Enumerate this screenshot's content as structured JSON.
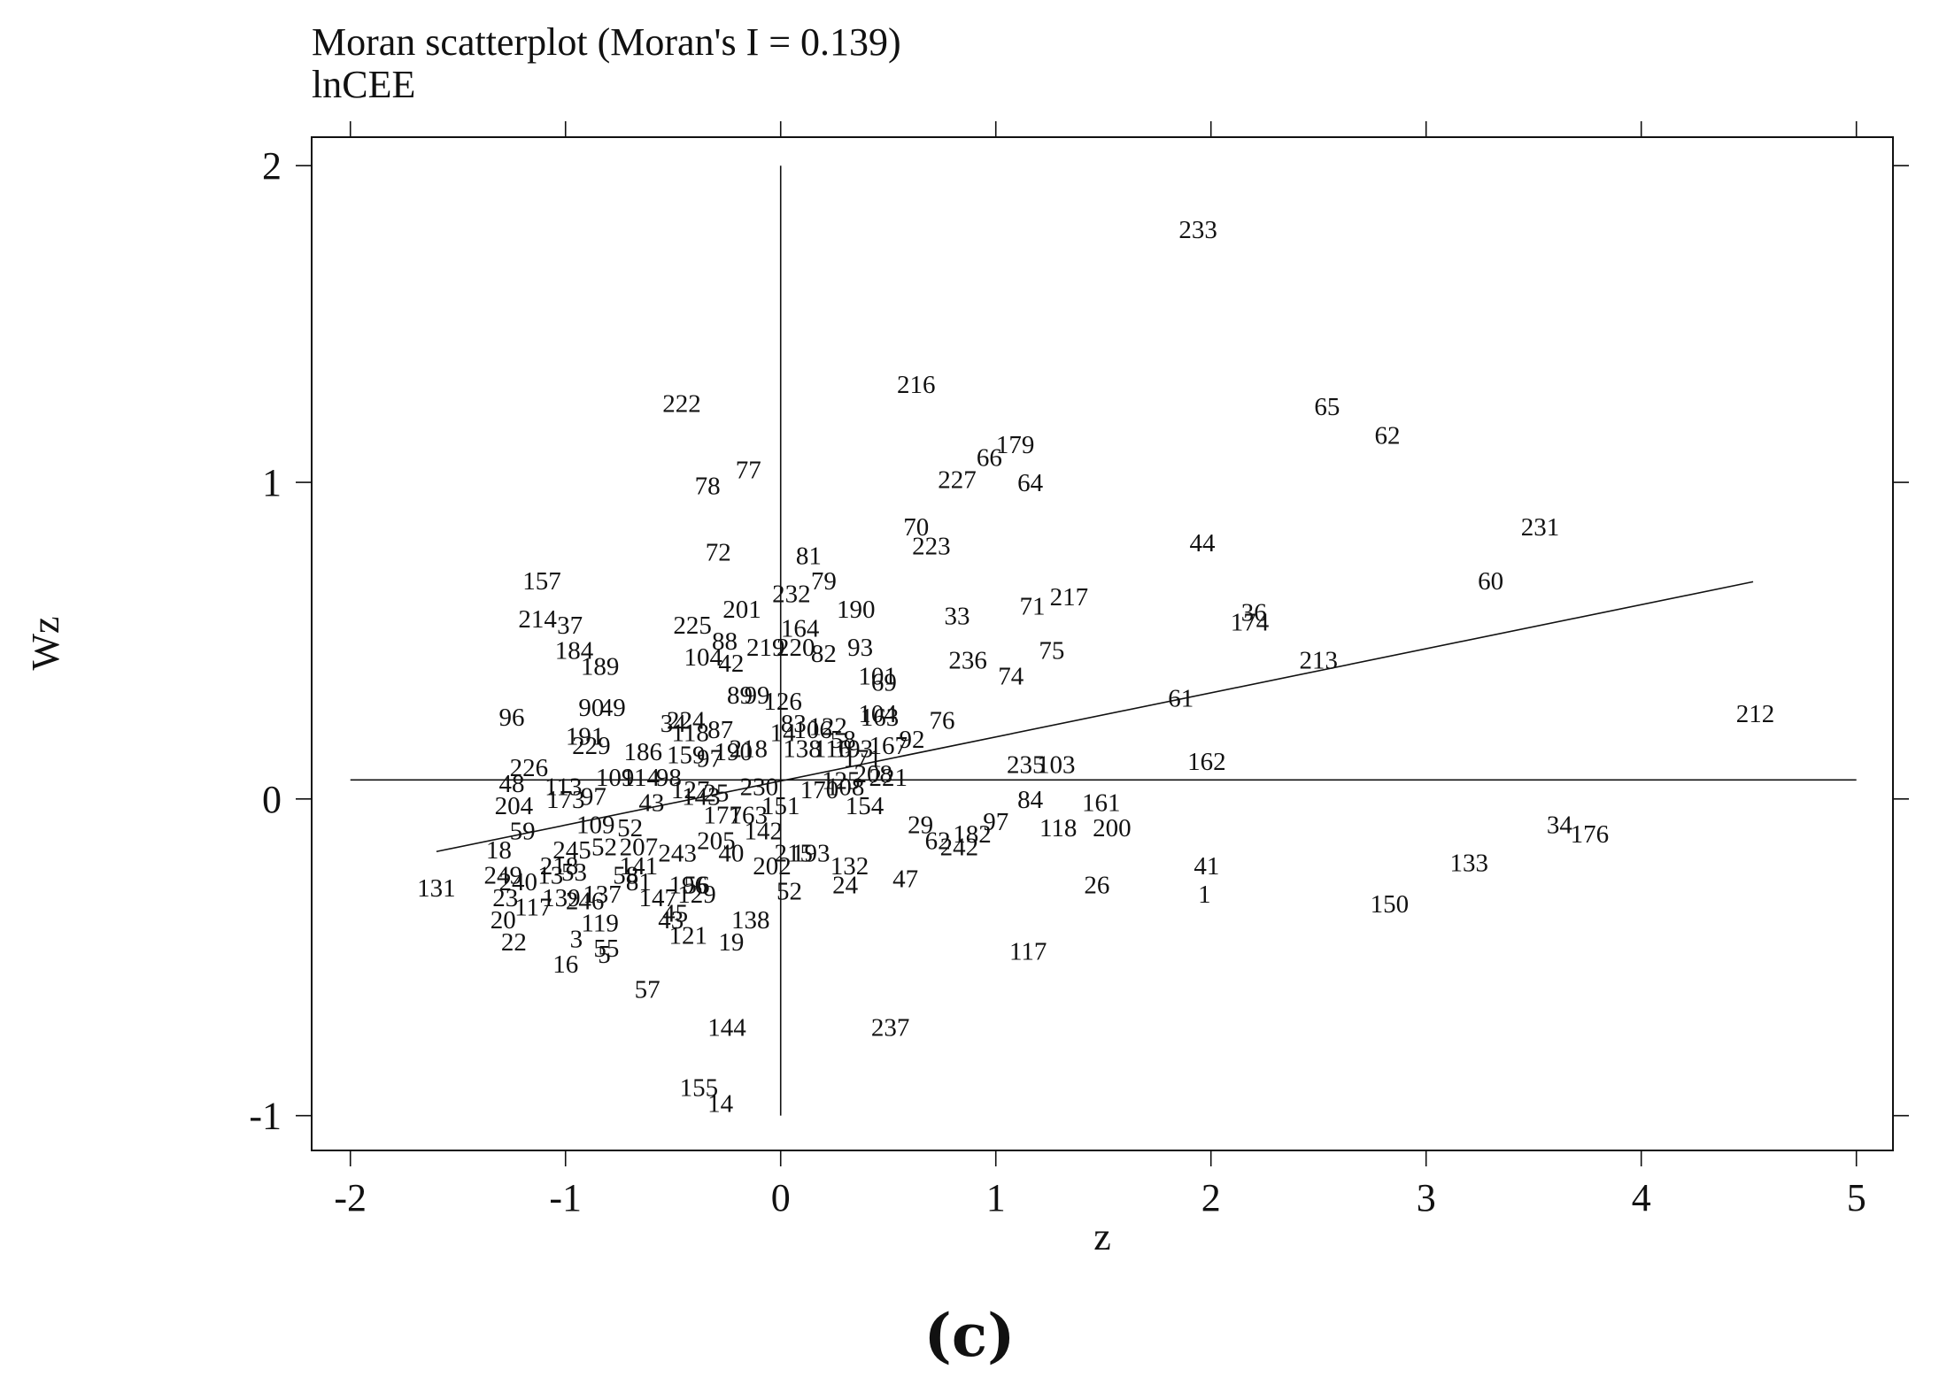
{
  "chart_data": {
    "type": "scatter",
    "title": "Moran scatterplot (Moran's I = 0.139)",
    "subtitle": "lnCEE",
    "xlabel": "z",
    "ylabel": "Wz",
    "panel_label": "(c)",
    "xlim": [
      -2.18,
      5.17
    ],
    "ylim": [
      -1.11,
      2.09
    ],
    "x_ticks": [
      -2,
      -1,
      0,
      1,
      2,
      3,
      4,
      5
    ],
    "x_tick_labels": [
      "-2",
      "-1",
      "0",
      "1",
      "2",
      "3",
      "4",
      "5"
    ],
    "y_ticks": [
      -1,
      0,
      1,
      2
    ],
    "y_tick_labels": [
      "-1",
      "0",
      "1",
      "2"
    ],
    "grid": false,
    "reference_lines": {
      "x": 0,
      "y": 0.06
    },
    "regression_line": {
      "x": [
        -1.6,
        4.52
      ],
      "y": [
        -0.166,
        0.686
      ]
    },
    "points": [
      {
        "label": "233",
        "x": 1.94,
        "y": 1.8
      },
      {
        "label": "216",
        "x": 0.63,
        "y": 1.31
      },
      {
        "label": "222",
        "x": -0.46,
        "y": 1.25
      },
      {
        "label": "65",
        "x": 2.54,
        "y": 1.24
      },
      {
        "label": "62",
        "x": 2.82,
        "y": 1.15
      },
      {
        "label": "179",
        "x": 1.09,
        "y": 1.12
      },
      {
        "label": "66",
        "x": 0.97,
        "y": 1.08
      },
      {
        "label": "227",
        "x": 0.82,
        "y": 1.01
      },
      {
        "label": "64",
        "x": 1.16,
        "y": 1.0
      },
      {
        "label": "77",
        "x": -0.15,
        "y": 1.04
      },
      {
        "label": "78",
        "x": -0.34,
        "y": 0.99
      },
      {
        "label": "231",
        "x": 3.53,
        "y": 0.86
      },
      {
        "label": "70",
        "x": 0.63,
        "y": 0.86
      },
      {
        "label": "223",
        "x": 0.7,
        "y": 0.8
      },
      {
        "label": "44",
        "x": 1.96,
        "y": 0.81
      },
      {
        "label": "72",
        "x": -0.29,
        "y": 0.78
      },
      {
        "label": "81",
        "x": 0.13,
        "y": 0.77
      },
      {
        "label": "157",
        "x": -1.11,
        "y": 0.69
      },
      {
        "label": "79",
        "x": 0.2,
        "y": 0.69
      },
      {
        "label": "60",
        "x": 3.3,
        "y": 0.69
      },
      {
        "label": "232",
        "x": 0.05,
        "y": 0.65
      },
      {
        "label": "217",
        "x": 1.34,
        "y": 0.64
      },
      {
        "label": "71",
        "x": 1.17,
        "y": 0.61
      },
      {
        "label": "201",
        "x": -0.18,
        "y": 0.6
      },
      {
        "label": "190",
        "x": 0.35,
        "y": 0.6
      },
      {
        "label": "33",
        "x": 0.82,
        "y": 0.58
      },
      {
        "label": "36",
        "x": 2.2,
        "y": 0.59
      },
      {
        "label": "174",
        "x": 2.18,
        "y": 0.56
      },
      {
        "label": "214",
        "x": -1.13,
        "y": 0.57
      },
      {
        "label": "37",
        "x": -0.98,
        "y": 0.55
      },
      {
        "label": "225",
        "x": -0.41,
        "y": 0.55
      },
      {
        "label": "164",
        "x": 0.09,
        "y": 0.54
      },
      {
        "label": "88",
        "x": -0.26,
        "y": 0.5
      },
      {
        "label": "219",
        "x": -0.07,
        "y": 0.48
      },
      {
        "label": "220",
        "x": 0.07,
        "y": 0.48
      },
      {
        "label": "93",
        "x": 0.37,
        "y": 0.48
      },
      {
        "label": "75",
        "x": 1.26,
        "y": 0.47
      },
      {
        "label": "184",
        "x": -0.96,
        "y": 0.47
      },
      {
        "label": "82",
        "x": 0.2,
        "y": 0.46
      },
      {
        "label": "213",
        "x": 2.5,
        "y": 0.44
      },
      {
        "label": "104",
        "x": -0.36,
        "y": 0.45
      },
      {
        "label": "42",
        "x": -0.23,
        "y": 0.43
      },
      {
        "label": "236",
        "x": 0.87,
        "y": 0.44
      },
      {
        "label": "189",
        "x": -0.84,
        "y": 0.42
      },
      {
        "label": "74",
        "x": 1.07,
        "y": 0.39
      },
      {
        "label": "101",
        "x": 0.45,
        "y": 0.39
      },
      {
        "label": "69",
        "x": 0.48,
        "y": 0.37
      },
      {
        "label": "89",
        "x": -0.19,
        "y": 0.33
      },
      {
        "label": "99",
        "x": -0.11,
        "y": 0.33
      },
      {
        "label": "61",
        "x": 1.86,
        "y": 0.32
      },
      {
        "label": "126",
        "x": 0.01,
        "y": 0.31
      },
      {
        "label": "90",
        "x": -0.88,
        "y": 0.29
      },
      {
        "label": "49",
        "x": -0.78,
        "y": 0.29
      },
      {
        "label": "96",
        "x": -1.25,
        "y": 0.26
      },
      {
        "label": "104b",
        "x": 0.45,
        "y": 0.27
      },
      {
        "label": "163",
        "x": 0.46,
        "y": 0.26
      },
      {
        "label": "76",
        "x": 0.75,
        "y": 0.25
      },
      {
        "label": "212",
        "x": 4.53,
        "y": 0.27
      },
      {
        "label": "224",
        "x": -0.44,
        "y": 0.25
      },
      {
        "label": "34b",
        "x": -0.5,
        "y": 0.24
      },
      {
        "label": "118b",
        "x": -0.42,
        "y": 0.21
      },
      {
        "label": "87",
        "x": -0.28,
        "y": 0.22
      },
      {
        "label": "83",
        "x": 0.06,
        "y": 0.24
      },
      {
        "label": "106",
        "x": 0.15,
        "y": 0.22
      },
      {
        "label": "122",
        "x": 0.22,
        "y": 0.23
      },
      {
        "label": "191",
        "x": -0.91,
        "y": 0.2
      },
      {
        "label": "14b",
        "x": 0.01,
        "y": 0.21
      },
      {
        "label": "92",
        "x": 0.61,
        "y": 0.19
      },
      {
        "label": "58",
        "x": 0.29,
        "y": 0.19
      },
      {
        "label": "167",
        "x": 0.5,
        "y": 0.17
      },
      {
        "label": "229",
        "x": -0.88,
        "y": 0.17
      },
      {
        "label": "218",
        "x": -0.15,
        "y": 0.16
      },
      {
        "label": "190b",
        "x": -0.22,
        "y": 0.15
      },
      {
        "label": "138b",
        "x": 0.1,
        "y": 0.16
      },
      {
        "label": "116",
        "x": 0.24,
        "y": 0.16
      },
      {
        "label": "193",
        "x": 0.34,
        "y": 0.16
      },
      {
        "label": "186",
        "x": -0.64,
        "y": 0.15
      },
      {
        "label": "159",
        "x": -0.44,
        "y": 0.14
      },
      {
        "label": "97b",
        "x": -0.33,
        "y": 0.13
      },
      {
        "label": "171",
        "x": 0.38,
        "y": 0.13
      },
      {
        "label": "235",
        "x": 1.14,
        "y": 0.11
      },
      {
        "label": "103",
        "x": 1.28,
        "y": 0.11
      },
      {
        "label": "162",
        "x": 1.98,
        "y": 0.12
      },
      {
        "label": "226",
        "x": -1.17,
        "y": 0.1
      },
      {
        "label": "109",
        "x": -0.77,
        "y": 0.07
      },
      {
        "label": "98",
        "x": -0.52,
        "y": 0.07
      },
      {
        "label": "114",
        "x": -0.65,
        "y": 0.07
      },
      {
        "label": "125",
        "x": 0.28,
        "y": 0.06
      },
      {
        "label": "208",
        "x": 0.43,
        "y": 0.08
      },
      {
        "label": "221",
        "x": 0.5,
        "y": 0.07
      },
      {
        "label": "48",
        "x": -1.25,
        "y": 0.05
      },
      {
        "label": "113",
        "x": -1.01,
        "y": 0.04
      },
      {
        "label": "230",
        "x": -0.1,
        "y": 0.04
      },
      {
        "label": "108",
        "x": 0.3,
        "y": 0.04
      },
      {
        "label": "127",
        "x": -0.42,
        "y": 0.03
      },
      {
        "label": "25",
        "x": -0.3,
        "y": 0.02
      },
      {
        "label": "170",
        "x": 0.18,
        "y": 0.03
      },
      {
        "label": "84",
        "x": 1.16,
        "y": 0.0
      },
      {
        "label": "161",
        "x": 1.49,
        "y": -0.01
      },
      {
        "label": "173",
        "x": -1.0,
        "y": 0.0
      },
      {
        "label": "97",
        "x": -0.87,
        "y": 0.01
      },
      {
        "label": "43",
        "x": -0.6,
        "y": -0.01
      },
      {
        "label": "143",
        "x": -0.37,
        "y": 0.01
      },
      {
        "label": "151",
        "x": 0.0,
        "y": -0.02
      },
      {
        "label": "154",
        "x": 0.39,
        "y": -0.02
      },
      {
        "label": "204",
        "x": -1.24,
        "y": -0.02
      },
      {
        "label": "177",
        "x": -0.27,
        "y": -0.05
      },
      {
        "label": "163b",
        "x": -0.15,
        "y": -0.05
      },
      {
        "label": "29",
        "x": 0.65,
        "y": -0.08
      },
      {
        "label": "97c",
        "x": 1.0,
        "y": -0.07
      },
      {
        "label": "118",
        "x": 1.29,
        "y": -0.09
      },
      {
        "label": "200",
        "x": 1.54,
        "y": -0.09
      },
      {
        "label": "34",
        "x": 3.62,
        "y": -0.08
      },
      {
        "label": "176",
        "x": 3.76,
        "y": -0.11
      },
      {
        "label": "109b",
        "x": -0.86,
        "y": -0.08
      },
      {
        "label": "52b",
        "x": -0.7,
        "y": -0.09
      },
      {
        "label": "59",
        "x": -1.2,
        "y": -0.1
      },
      {
        "label": "182",
        "x": 0.89,
        "y": -0.11
      },
      {
        "label": "62b",
        "x": 0.73,
        "y": -0.13
      },
      {
        "label": "242",
        "x": 0.83,
        "y": -0.15
      },
      {
        "label": "205",
        "x": -0.3,
        "y": -0.13
      },
      {
        "label": "142",
        "x": -0.08,
        "y": -0.1
      },
      {
        "label": "207",
        "x": -0.66,
        "y": -0.15
      },
      {
        "label": "52",
        "x": -0.82,
        "y": -0.15
      },
      {
        "label": "18",
        "x": -1.31,
        "y": -0.16
      },
      {
        "label": "245",
        "x": -0.97,
        "y": -0.16
      },
      {
        "label": "243",
        "x": -0.48,
        "y": -0.17
      },
      {
        "label": "40",
        "x": -0.23,
        "y": -0.17
      },
      {
        "label": "215",
        "x": 0.06,
        "y": -0.17
      },
      {
        "label": "193b",
        "x": 0.14,
        "y": -0.17
      },
      {
        "label": "133",
        "x": 3.2,
        "y": -0.2
      },
      {
        "label": "41",
        "x": 1.98,
        "y": -0.21
      },
      {
        "label": "218b",
        "x": -1.03,
        "y": -0.21
      },
      {
        "label": "141",
        "x": -0.66,
        "y": -0.21
      },
      {
        "label": "202",
        "x": -0.04,
        "y": -0.21
      },
      {
        "label": "132",
        "x": 0.32,
        "y": -0.21
      },
      {
        "label": "53",
        "x": -0.96,
        "y": -0.23
      },
      {
        "label": "58b",
        "x": -0.72,
        "y": -0.24
      },
      {
        "label": "47",
        "x": 0.58,
        "y": -0.25
      },
      {
        "label": "26",
        "x": 1.47,
        "y": -0.27
      },
      {
        "label": "249",
        "x": -1.29,
        "y": -0.24
      },
      {
        "label": "240",
        "x": -1.22,
        "y": -0.26
      },
      {
        "label": "13",
        "x": -1.07,
        "y": -0.24
      },
      {
        "label": "131",
        "x": -1.6,
        "y": -0.28
      },
      {
        "label": "56",
        "x": -0.39,
        "y": -0.27
      },
      {
        "label": "129",
        "x": -0.39,
        "y": -0.3
      },
      {
        "label": "24",
        "x": 0.3,
        "y": -0.27
      },
      {
        "label": "81b",
        "x": -0.66,
        "y": -0.26
      },
      {
        "label": "196",
        "x": -0.43,
        "y": -0.27
      },
      {
        "label": "52c",
        "x": 0.04,
        "y": -0.29
      },
      {
        "label": "1",
        "x": 1.97,
        "y": -0.3
      },
      {
        "label": "150",
        "x": 2.83,
        "y": -0.33
      },
      {
        "label": "137",
        "x": -0.83,
        "y": -0.3
      },
      {
        "label": "246",
        "x": -0.91,
        "y": -0.32
      },
      {
        "label": "139",
        "x": -1.02,
        "y": -0.31
      },
      {
        "label": "23",
        "x": -1.28,
        "y": -0.31
      },
      {
        "label": "147",
        "x": -0.57,
        "y": -0.31
      },
      {
        "label": "117",
        "x": -1.15,
        "y": -0.34
      },
      {
        "label": "45",
        "x": -0.49,
        "y": -0.36
      },
      {
        "label": "138",
        "x": -0.14,
        "y": -0.38
      },
      {
        "label": "20",
        "x": -1.29,
        "y": -0.38
      },
      {
        "label": "119",
        "x": -0.84,
        "y": -0.39
      },
      {
        "label": "43b",
        "x": -0.51,
        "y": -0.38
      },
      {
        "label": "121",
        "x": -0.43,
        "y": -0.43
      },
      {
        "label": "19",
        "x": -0.23,
        "y": -0.45
      },
      {
        "label": "22",
        "x": -1.24,
        "y": -0.45
      },
      {
        "label": "3",
        "x": -0.95,
        "y": -0.44
      },
      {
        "label": "55",
        "x": -0.81,
        "y": -0.47
      },
      {
        "label": "5",
        "x": -0.82,
        "y": -0.49
      },
      {
        "label": "117b",
        "x": 1.15,
        "y": -0.48
      },
      {
        "label": "16",
        "x": -1.0,
        "y": -0.52
      },
      {
        "label": "57",
        "x": -0.62,
        "y": -0.6
      },
      {
        "label": "144",
        "x": -0.25,
        "y": -0.72
      },
      {
        "label": "237",
        "x": 0.51,
        "y": -0.72
      },
      {
        "label": "155",
        "x": -0.38,
        "y": -0.91
      },
      {
        "label": "14",
        "x": -0.28,
        "y": -0.96
      }
    ]
  }
}
